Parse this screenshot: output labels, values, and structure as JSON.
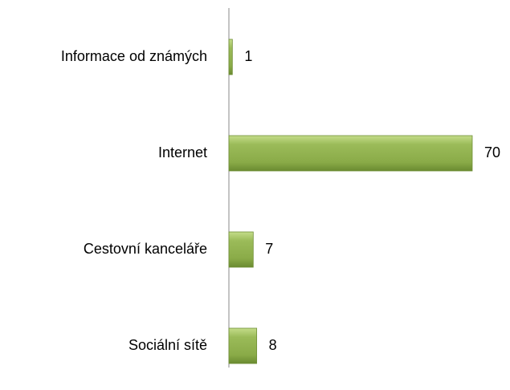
{
  "chart_data": {
    "type": "hbar",
    "categories": [
      "Informace od známých",
      "Internet",
      "Cestovní kanceláře",
      "Sociální sítě"
    ],
    "values": [
      1,
      70,
      7,
      8
    ],
    "color": "#9bbb59"
  }
}
